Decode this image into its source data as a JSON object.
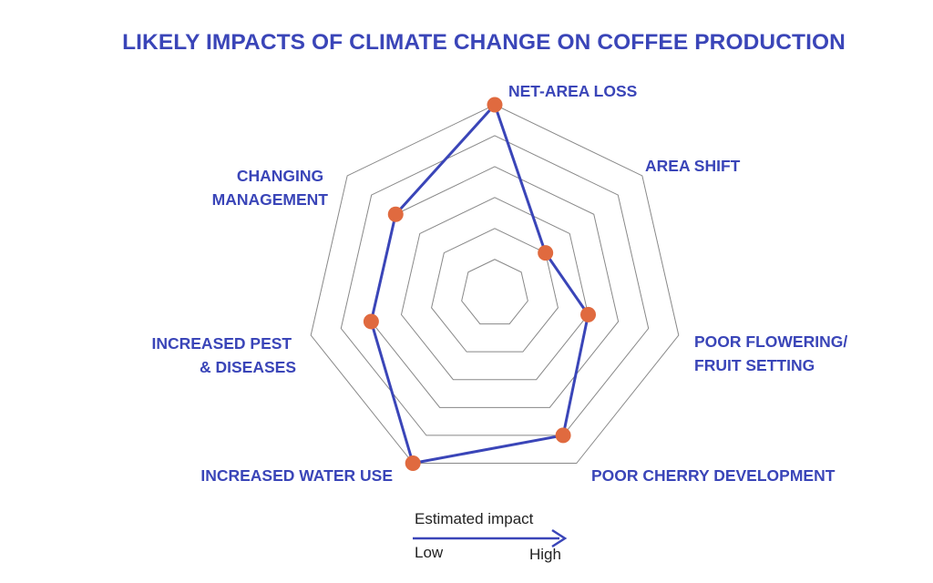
{
  "chart_data": {
    "type": "radar",
    "title": "LIKELY IMPACTS OF CLIMATE CHANGE ON COFFEE PRODUCTION",
    "axes": [
      {
        "label_lines": [
          "NET-AREA LOSS"
        ]
      },
      {
        "label_lines": [
          "AREA SHIFT"
        ]
      },
      {
        "label_lines": [
          "POOR FLOWERING/",
          "FRUIT SETTING"
        ]
      },
      {
        "label_lines": [
          "POOR CHERRY DEVELOPMENT"
        ]
      },
      {
        "label_lines": [
          "INCREASED WATER USE"
        ]
      },
      {
        "label_lines": [
          "INCREASED PEST",
          "& DISEASES"
        ]
      },
      {
        "label_lines": [
          "CHANGING",
          "MANAGEMENT"
        ]
      }
    ],
    "values": [
      5,
      1,
      2,
      4,
      5,
      3,
      3
    ],
    "scale": {
      "min": 0,
      "max": 5,
      "rings": 5,
      "inner_hole": 0.18
    },
    "colors": {
      "line": "#3a45b8",
      "marker": "#e06a3f",
      "grid": "#888888",
      "title": "#3a45b8"
    }
  },
  "legend": {
    "title": "Estimated impact",
    "low": "Low",
    "high": "High"
  }
}
